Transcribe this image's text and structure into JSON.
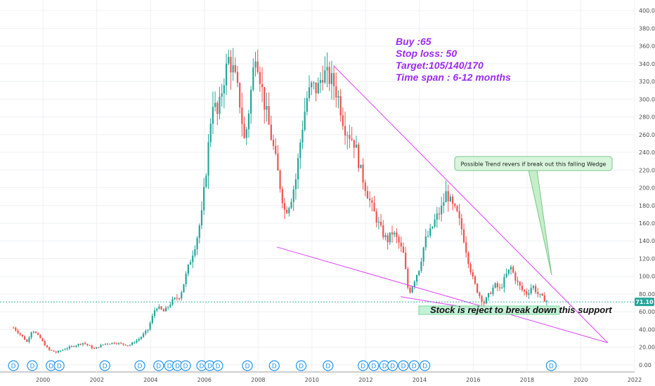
{
  "chart_data": {
    "type": "candlestick",
    "title": "",
    "xlabel": "",
    "ylabel": "",
    "xlim": [
      1998.4,
      2022.0
    ],
    "ylim": [
      -8,
      412
    ],
    "grid": true,
    "y_ticks": [
      "0.00",
      "20.00",
      "40.00",
      "60.00",
      "80.00",
      "100.00",
      "120.00",
      "140.00",
      "160.00",
      "180.00",
      "200.00",
      "220.00",
      "240.00",
      "260.00",
      "280.00",
      "300.00",
      "320.00",
      "340.00",
      "360.00",
      "380.00",
      "400.00"
    ],
    "x_ticks": [
      "2000",
      "2002",
      "2004",
      "2006",
      "2008",
      "2010",
      "2012",
      "2014",
      "2016",
      "2018",
      "2020",
      "2022"
    ],
    "last_price": {
      "value": 71.1,
      "label": "71.10"
    },
    "up_color": "#26a69a",
    "down_color": "#ef5350",
    "price_path": [
      [
        1998.9,
        42
      ],
      [
        1999.2,
        33
      ],
      [
        1999.4,
        26
      ],
      [
        1999.6,
        40
      ],
      [
        1999.9,
        30
      ],
      [
        2000.2,
        17
      ],
      [
        2000.5,
        14
      ],
      [
        2000.8,
        18
      ],
      [
        2001.1,
        21
      ],
      [
        2001.5,
        25
      ],
      [
        2001.9,
        18
      ],
      [
        2002.3,
        24
      ],
      [
        2002.7,
        25
      ],
      [
        2003.2,
        22
      ],
      [
        2003.6,
        30
      ],
      [
        2003.9,
        40
      ],
      [
        2004.2,
        66
      ],
      [
        2004.5,
        60
      ],
      [
        2004.8,
        72
      ],
      [
        2005.1,
        78
      ],
      [
        2005.4,
        110
      ],
      [
        2005.7,
        140
      ],
      [
        2005.9,
        170
      ],
      [
        2006.1,
        230
      ],
      [
        2006.3,
        300
      ],
      [
        2006.5,
        280
      ],
      [
        2006.7,
        320
      ],
      [
        2006.9,
        345
      ],
      [
        2007.1,
        330
      ],
      [
        2007.3,
        300
      ],
      [
        2007.5,
        250
      ],
      [
        2007.7,
        300
      ],
      [
        2007.9,
        355
      ],
      [
        2008.0,
        340
      ],
      [
        2008.2,
        300
      ],
      [
        2008.4,
        270
      ],
      [
        2008.6,
        240
      ],
      [
        2008.8,
        205
      ],
      [
        2009.0,
        172
      ],
      [
        2009.2,
        185
      ],
      [
        2009.4,
        210
      ],
      [
        2009.6,
        260
      ],
      [
        2009.8,
        300
      ],
      [
        2010.0,
        315
      ],
      [
        2010.2,
        310
      ],
      [
        2010.4,
        330
      ],
      [
        2010.6,
        325
      ],
      [
        2010.8,
        318
      ],
      [
        2011.0,
        300
      ],
      [
        2011.2,
        270
      ],
      [
        2011.4,
        260
      ],
      [
        2011.6,
        250
      ],
      [
        2011.8,
        220
      ],
      [
        2012.0,
        200
      ],
      [
        2012.2,
        180
      ],
      [
        2012.4,
        165
      ],
      [
        2012.6,
        150
      ],
      [
        2012.8,
        140
      ],
      [
        2013.0,
        150
      ],
      [
        2013.2,
        140
      ],
      [
        2013.4,
        125
      ],
      [
        2013.6,
        80
      ],
      [
        2013.8,
        95
      ],
      [
        2014.0,
        110
      ],
      [
        2014.2,
        140
      ],
      [
        2014.4,
        150
      ],
      [
        2014.6,
        165
      ],
      [
        2014.8,
        175
      ],
      [
        2015.0,
        195
      ],
      [
        2015.2,
        180
      ],
      [
        2015.4,
        170
      ],
      [
        2015.6,
        150
      ],
      [
        2015.8,
        120
      ],
      [
        2016.0,
        95
      ],
      [
        2016.2,
        80
      ],
      [
        2016.4,
        70
      ],
      [
        2016.6,
        80
      ],
      [
        2016.8,
        90
      ],
      [
        2017.0,
        85
      ],
      [
        2017.2,
        100
      ],
      [
        2017.4,
        110
      ],
      [
        2017.6,
        95
      ],
      [
        2017.8,
        85
      ],
      [
        2018.0,
        80
      ],
      [
        2018.2,
        90
      ],
      [
        2018.4,
        80
      ],
      [
        2018.6,
        75
      ],
      [
        2018.8,
        71.1
      ]
    ],
    "pattern_lines": [
      {
        "name": "falling-wedge-upper-line",
        "from": [
          2010.8,
          338
        ],
        "to": [
          2021.0,
          25
        ]
      },
      {
        "name": "falling-wedge-lower-line",
        "from": [
          2008.7,
          133
        ],
        "to": [
          2021.0,
          25
        ]
      },
      {
        "name": "support-line",
        "from": [
          2013.3,
          77
        ],
        "to": [
          2016.7,
          60
        ]
      }
    ],
    "dividend_markers": [
      1998.9,
      1999.6,
      2000.3,
      2000.6,
      2002.3,
      2003.6,
      2004.3,
      2004.7,
      2005.0,
      2005.3,
      2005.9,
      2006.2,
      2006.5,
      2007.6,
      2008.6,
      2009.6,
      2010.6,
      2011.9,
      2012.3,
      2012.7,
      2013.0,
      2013.4,
      2013.8,
      2014.2,
      2018.9
    ],
    "dividend_label": "D",
    "annotations": {
      "trade_plan": [
        "Buy :65",
        "Stop loss: 50",
        "Target:105/140/170",
        "Time span : 6-12 months"
      ],
      "callout": "Possible Trend revers if break out this falling Wedge",
      "support_note": "Stock is reject to break down this support"
    }
  }
}
